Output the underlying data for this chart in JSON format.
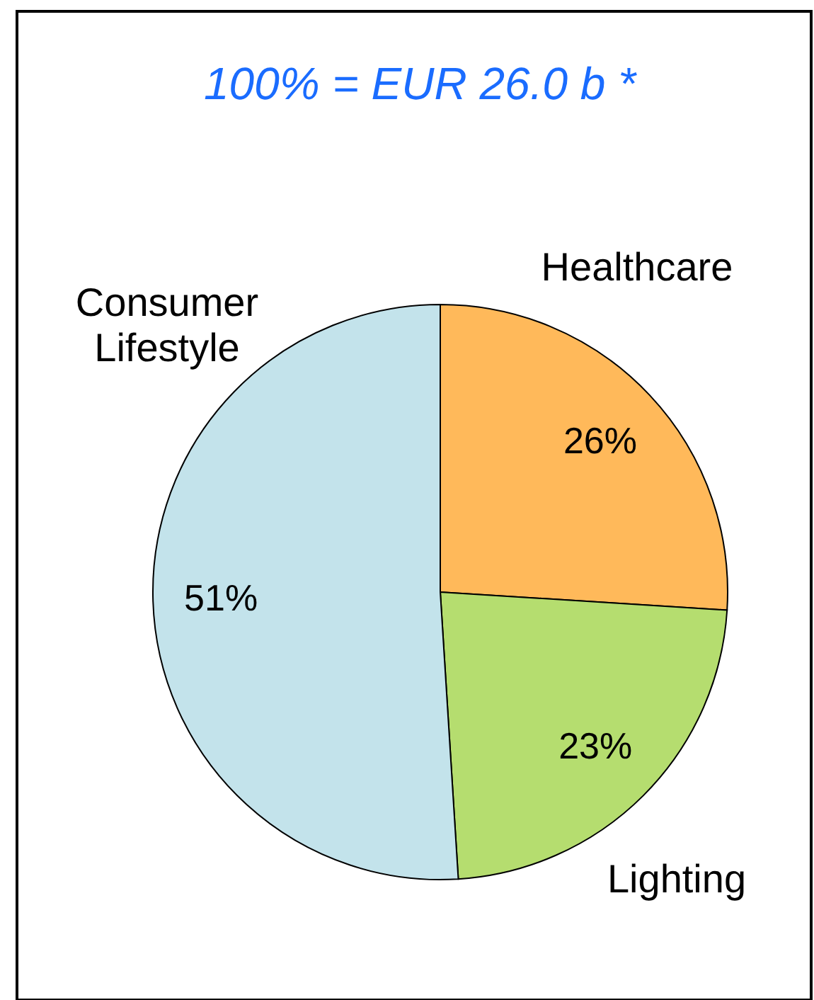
{
  "chart_data": {
    "type": "pie",
    "title": "100% = EUR 26.0 b *",
    "categories": [
      "Healthcare",
      "Lighting",
      "Consumer Lifestyle"
    ],
    "values": [
      26,
      23,
      51
    ],
    "value_labels": [
      "26%",
      "23%",
      "51%"
    ],
    "colors": [
      "#ffb95a",
      "#b5dd6f",
      "#c3e3eb"
    ]
  }
}
